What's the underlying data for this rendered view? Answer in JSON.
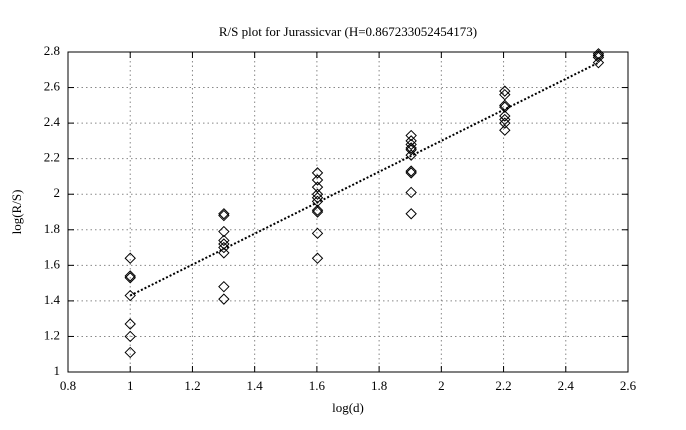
{
  "chart_data": {
    "type": "scatter",
    "title": "R/S plot for Jurassicvar (H=0.867233052454173)",
    "xlabel": "log(d)",
    "ylabel": "log(R/S)",
    "xlim": [
      0.8,
      2.6
    ],
    "ylim": [
      1,
      2.8
    ],
    "xticks": [
      0.8,
      1,
      1.2,
      1.4,
      1.6,
      1.8,
      2,
      2.2,
      2.4,
      2.6
    ],
    "yticks": [
      1,
      1.2,
      1.4,
      1.6,
      1.8,
      2,
      2.2,
      2.4,
      2.6,
      2.8
    ],
    "grid": true,
    "series": [
      {
        "type": "scatter",
        "color": "#000000",
        "x": [
          1,
          1,
          1,
          1,
          1,
          1,
          1,
          1.301,
          1.301,
          1.301,
          1.301,
          1.301,
          1.301,
          1.301,
          1.301,
          1.301,
          1.602,
          1.602,
          1.602,
          1.602,
          1.602,
          1.602,
          1.602,
          1.602,
          1.602,
          1.602,
          1.903,
          1.903,
          1.903,
          1.903,
          1.903,
          1.903,
          1.903,
          1.903,
          1.903,
          1.903,
          2.204,
          2.204,
          2.204,
          2.204,
          2.204,
          2.204,
          2.204,
          2.204,
          2.505,
          2.505,
          2.505,
          2.505
        ],
        "values": [
          1.64,
          1.54,
          1.53,
          1.43,
          1.27,
          1.2,
          1.11,
          1.89,
          1.88,
          1.79,
          1.74,
          1.72,
          1.7,
          1.67,
          1.48,
          1.41,
          2.12,
          2.08,
          2.04,
          2.0,
          1.98,
          1.96,
          1.91,
          1.9,
          1.78,
          1.64,
          2.33,
          2.3,
          2.28,
          2.26,
          2.25,
          2.22,
          2.13,
          2.12,
          2.01,
          1.89,
          2.58,
          2.56,
          2.5,
          2.49,
          2.44,
          2.42,
          2.4,
          2.36,
          2.79,
          2.78,
          2.77,
          2.74
        ]
      },
      {
        "type": "line",
        "color": "#000000",
        "style": "dotted",
        "x": [
          1,
          2.505
        ],
        "values": [
          1.43,
          2.74
        ]
      }
    ]
  }
}
